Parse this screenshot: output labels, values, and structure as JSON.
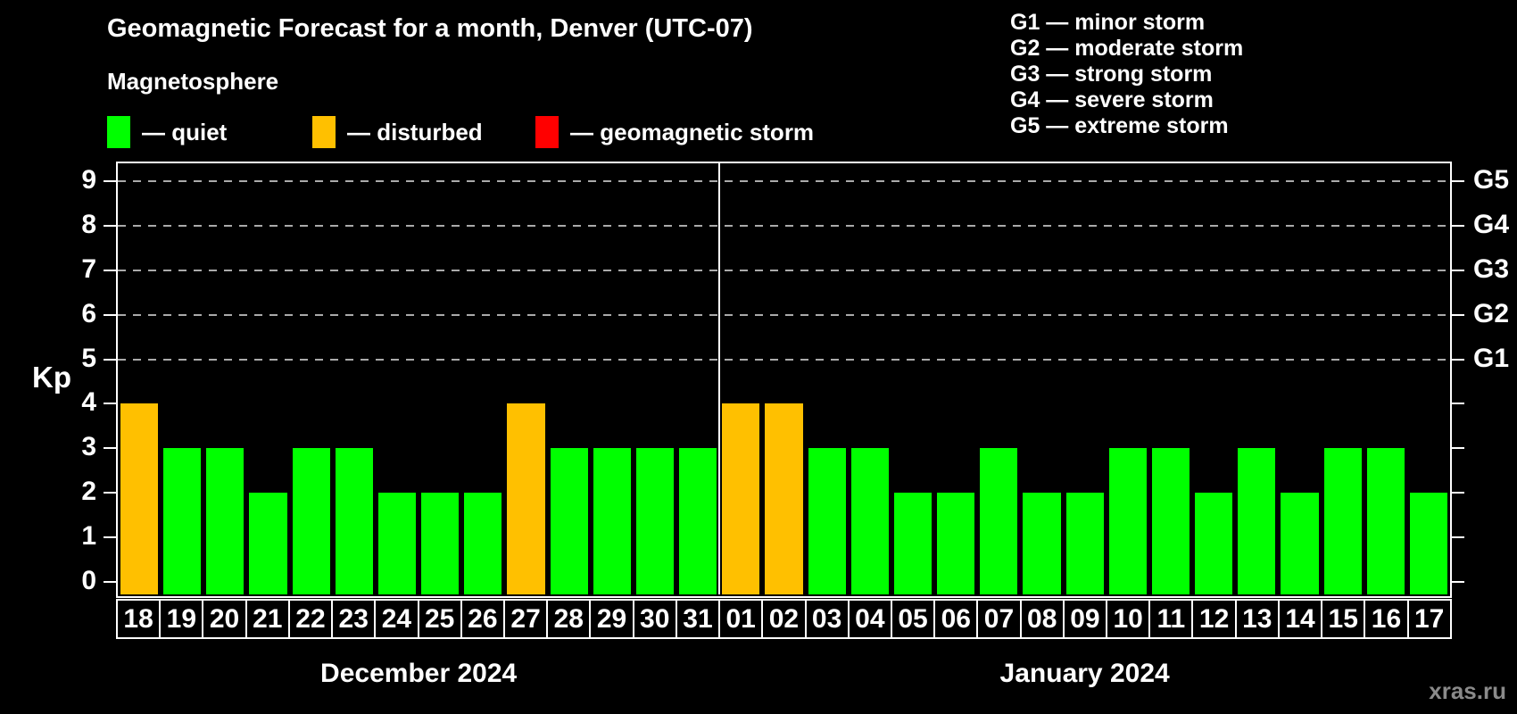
{
  "title": "Geomagnetic Forecast for a month, Denver (UTC-07)",
  "subtitle": "Magnetosphere",
  "legend": {
    "items": [
      {
        "status": "quiet",
        "label": "— quiet"
      },
      {
        "status": "disturbed",
        "label": "— disturbed"
      },
      {
        "status": "storm",
        "label": "— geomagnetic storm"
      }
    ]
  },
  "storm_scale": [
    "G1 — minor storm",
    "G2 — moderate storm",
    "G3 — strong storm",
    "G4 — severe storm",
    "G5 — extreme storm"
  ],
  "watermark": "xras.ru",
  "colors": {
    "quiet": "#00ff00",
    "disturbed": "#ffc000",
    "storm": "#ff0000",
    "background": "#000000",
    "axis": "#ffffff",
    "grid": "#aaaaaa",
    "watermark": "#8a8a8a"
  },
  "chart_data": {
    "type": "bar",
    "title": "Geomagnetic Forecast for a month, Denver (UTC-07)",
    "ylabel": "Kp",
    "ylim": [
      0,
      9
    ],
    "yticks": [
      0,
      1,
      2,
      3,
      4,
      5,
      6,
      7,
      8,
      9
    ],
    "grid_levels": [
      5,
      6,
      7,
      8,
      9
    ],
    "grid_on": true,
    "legend_position": "top",
    "right_axis": [
      {
        "kp": 5,
        "label": "G1"
      },
      {
        "kp": 6,
        "label": "G2"
      },
      {
        "kp": 7,
        "label": "G3"
      },
      {
        "kp": 8,
        "label": "G4"
      },
      {
        "kp": 9,
        "label": "G5"
      }
    ],
    "months": [
      {
        "label": "December 2024",
        "days": [
          {
            "day": "18",
            "kp": 4,
            "status": "disturbed"
          },
          {
            "day": "19",
            "kp": 3,
            "status": "quiet"
          },
          {
            "day": "20",
            "kp": 3,
            "status": "quiet"
          },
          {
            "day": "21",
            "kp": 2,
            "status": "quiet"
          },
          {
            "day": "22",
            "kp": 3,
            "status": "quiet"
          },
          {
            "day": "23",
            "kp": 3,
            "status": "quiet"
          },
          {
            "day": "24",
            "kp": 2,
            "status": "quiet"
          },
          {
            "day": "25",
            "kp": 2,
            "status": "quiet"
          },
          {
            "day": "26",
            "kp": 2,
            "status": "quiet"
          },
          {
            "day": "27",
            "kp": 4,
            "status": "disturbed"
          },
          {
            "day": "28",
            "kp": 3,
            "status": "quiet"
          },
          {
            "day": "29",
            "kp": 3,
            "status": "quiet"
          },
          {
            "day": "30",
            "kp": 3,
            "status": "quiet"
          },
          {
            "day": "31",
            "kp": 3,
            "status": "quiet"
          }
        ]
      },
      {
        "label": "January 2024",
        "days": [
          {
            "day": "01",
            "kp": 4,
            "status": "disturbed"
          },
          {
            "day": "02",
            "kp": 4,
            "status": "disturbed"
          },
          {
            "day": "03",
            "kp": 3,
            "status": "quiet"
          },
          {
            "day": "04",
            "kp": 3,
            "status": "quiet"
          },
          {
            "day": "05",
            "kp": 2,
            "status": "quiet"
          },
          {
            "day": "06",
            "kp": 2,
            "status": "quiet"
          },
          {
            "day": "07",
            "kp": 3,
            "status": "quiet"
          },
          {
            "day": "08",
            "kp": 2,
            "status": "quiet"
          },
          {
            "day": "09",
            "kp": 2,
            "status": "quiet"
          },
          {
            "day": "10",
            "kp": 3,
            "status": "quiet"
          },
          {
            "day": "11",
            "kp": 3,
            "status": "quiet"
          },
          {
            "day": "12",
            "kp": 2,
            "status": "quiet"
          },
          {
            "day": "13",
            "kp": 3,
            "status": "quiet"
          },
          {
            "day": "14",
            "kp": 2,
            "status": "quiet"
          },
          {
            "day": "15",
            "kp": 3,
            "status": "quiet"
          },
          {
            "day": "16",
            "kp": 3,
            "status": "quiet"
          },
          {
            "day": "17",
            "kp": 2,
            "status": "quiet"
          }
        ]
      }
    ]
  }
}
